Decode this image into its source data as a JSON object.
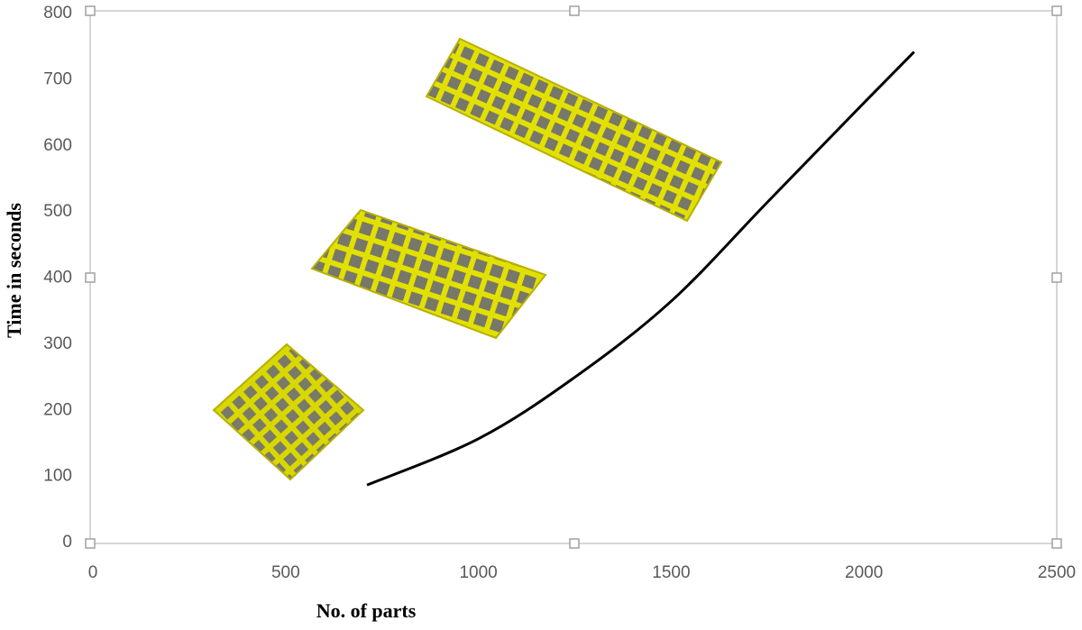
{
  "chart_data": {
    "type": "line",
    "x_label": "No. of parts",
    "y_label": "Time in seconds",
    "x": [
      711,
      1000,
      1250,
      1500,
      1750,
      2000,
      2130
    ],
    "values": [
      87,
      157,
      250,
      365,
      515,
      665,
      742
    ],
    "color": "#000000",
    "xlim": [
      0,
      2500
    ],
    "xticks": [
      0,
      500,
      1000,
      1500,
      2000,
      2500
    ],
    "ylim": [
      0,
      800
    ],
    "yticks": [
      0,
      100,
      200,
      300,
      400,
      500,
      600,
      700,
      800
    ]
  }
}
